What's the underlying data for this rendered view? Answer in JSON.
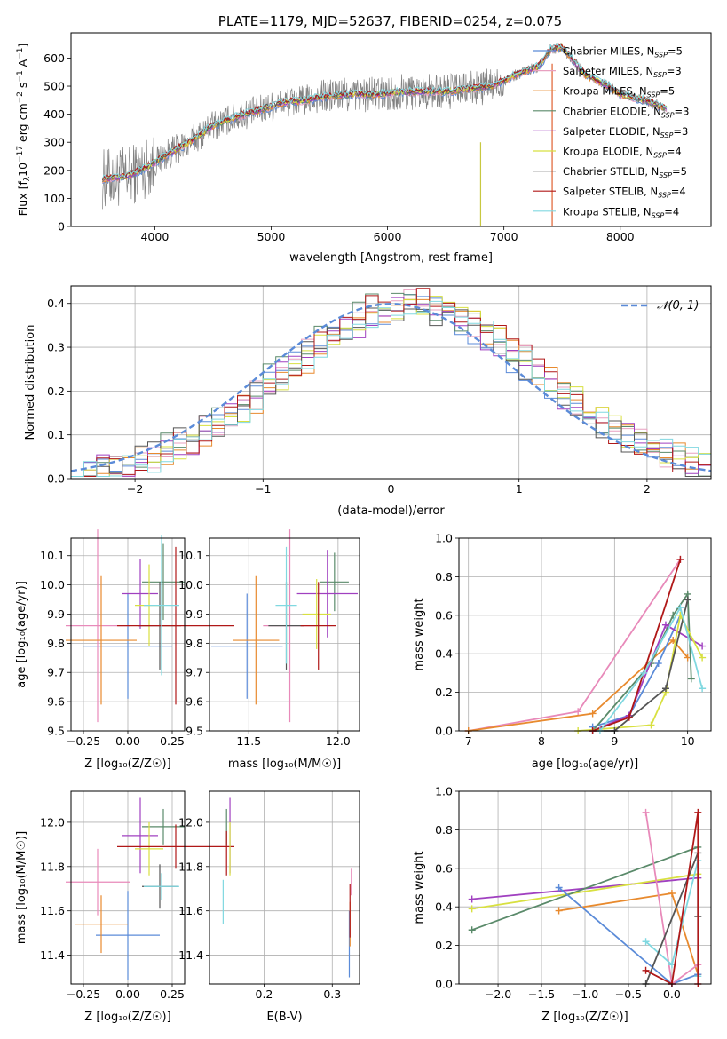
{
  "spectrum": {
    "title": "PLATE=1179, MJD=52637, FIBERID=0254, z=0.075",
    "xlabel": "wavelength [Angstrom, rest frame]",
    "ylabel": "Flux [f_λ 10^-17 erg cm^-2 s^-1 A^-1]",
    "xlim": [
      3280,
      8780
    ],
    "ylim": [
      0,
      690
    ],
    "xticks": [
      4000,
      5000,
      6000,
      7000,
      8000
    ],
    "yticks": [
      0,
      100,
      200,
      300,
      400,
      500,
      600
    ],
    "legend": [
      {
        "label": "Chabrier MILES, N_SSP=5",
        "color": "#5b8bd8"
      },
      {
        "label": "Salpeter MILES, N_SSP=3",
        "color": "#e8a0c0"
      },
      {
        "label": "Kroupa MILES, N_SSP=5",
        "color": "#e88a2e"
      },
      {
        "label": "Chabrier ELODIE, N_SSP=3",
        "color": "#5a8a6a"
      },
      {
        "label": "Salpeter ELODIE, N_SSP=3",
        "color": "#a040c0"
      },
      {
        "label": "Kroupa ELODIE, N_SSP=4",
        "color": "#d8e040"
      },
      {
        "label": "Chabrier STELIB, N_SSP=5",
        "color": "#555555"
      },
      {
        "label": "Salpeter STELIB, N_SSP=4",
        "color": "#b01818"
      },
      {
        "label": "Kroupa STELIB, N_SSP=4",
        "color": "#80d8e0"
      }
    ],
    "data_color": "#808080",
    "continuum": {
      "wavelength": [
        3550,
        3700,
        3800,
        3950,
        4100,
        4300,
        4500,
        4700,
        4900,
        5100,
        5300,
        5500,
        5700,
        5900,
        6100,
        6300,
        6500,
        6700,
        6900,
        7100,
        7300,
        7400,
        7500,
        7600,
        7700,
        7800,
        7900,
        8000,
        8200,
        8400
      ],
      "flux": [
        170,
        175,
        185,
        215,
        255,
        300,
        360,
        390,
        415,
        440,
        450,
        465,
        470,
        470,
        480,
        480,
        480,
        490,
        500,
        540,
        570,
        630,
        640,
        590,
        540,
        520,
        500,
        470,
        450,
        420
      ]
    }
  },
  "residuals": {
    "xlabel": "(data-model)/error",
    "ylabel": "Normed distribution",
    "xlim": [
      -2.5,
      2.5
    ],
    "ylim": [
      0,
      0.44
    ],
    "xticks": [
      -2,
      -1,
      0,
      1,
      2
    ],
    "yticks": [
      0.0,
      0.1,
      0.2,
      0.3,
      0.4
    ],
    "legend_label": "𝒩(0, 1)",
    "gaussian_color": "#5b8bd8"
  },
  "age_Z": {
    "xlabel": "Z [log₁₀(Z/Z☉)]",
    "ylabel": "age  [log₁₀(age/yr)]",
    "xlim": [
      -0.32,
      0.32
    ],
    "ylim": [
      9.5,
      10.16
    ],
    "xticks": [
      -0.25,
      0.0,
      0.25
    ],
    "xticklabels": [
      "−0.25",
      "0.00",
      "0.25"
    ],
    "yticks": [
      9.5,
      9.6,
      9.7,
      9.8,
      9.9,
      10.0,
      10.1
    ],
    "points": [
      {
        "x": 0.0,
        "y": 9.79,
        "xerr": 0.25,
        "yerr": 0.18,
        "color": "#5b8bd8"
      },
      {
        "x": -0.17,
        "y": 9.86,
        "xerr": 0.18,
        "yerr": 0.33,
        "color": "#e88aba"
      },
      {
        "x": -0.15,
        "y": 9.81,
        "xerr": 0.2,
        "yerr": 0.22,
        "color": "#e88a2e"
      },
      {
        "x": 0.2,
        "y": 10.01,
        "xerr": 0.12,
        "yerr": 0.13,
        "color": "#5a8a6a"
      },
      {
        "x": 0.07,
        "y": 9.97,
        "xerr": 0.1,
        "yerr": 0.12,
        "color": "#a040c0"
      },
      {
        "x": 0.12,
        "y": 9.93,
        "xerr": 0.08,
        "yerr": 0.14,
        "color": "#d8e040"
      },
      {
        "x": 0.18,
        "y": 9.86,
        "xerr": 0.12,
        "yerr": 0.15,
        "color": "#555555"
      },
      {
        "x": 0.27,
        "y": 9.86,
        "xerr": 0.33,
        "yerr": 0.27,
        "color": "#b01818"
      },
      {
        "x": 0.19,
        "y": 9.93,
        "xerr": 0.1,
        "yerr": 0.24,
        "color": "#80d8e0"
      }
    ]
  },
  "age_mass": {
    "xlabel": "mass [log₁₀(M/M☉)]",
    "xlim": [
      11.28,
      12.12
    ],
    "ylim": [
      9.5,
      10.16
    ],
    "xticks": [
      11.5,
      12.0
    ],
    "yticks": [
      9.5,
      9.6,
      9.7,
      9.8,
      9.9,
      10.0,
      10.1
    ],
    "points": [
      {
        "x": 11.49,
        "y": 9.79,
        "xerr": 0.2,
        "yerr": 0.18,
        "color": "#5b8bd8"
      },
      {
        "x": 11.73,
        "y": 9.86,
        "xerr": 0.15,
        "yerr": 0.33,
        "color": "#e88aba"
      },
      {
        "x": 11.54,
        "y": 9.81,
        "xerr": 0.13,
        "yerr": 0.22,
        "color": "#e88a2e"
      },
      {
        "x": 11.98,
        "y": 10.01,
        "xerr": 0.08,
        "yerr": 0.1,
        "color": "#5a8a6a"
      },
      {
        "x": 11.94,
        "y": 9.97,
        "xerr": 0.17,
        "yerr": 0.15,
        "color": "#a040c0"
      },
      {
        "x": 11.88,
        "y": 9.9,
        "xerr": 0.08,
        "yerr": 0.12,
        "color": "#d8e040"
      },
      {
        "x": 11.71,
        "y": 9.86,
        "xerr": 0.1,
        "yerr": 0.15,
        "color": "#555555"
      },
      {
        "x": 11.89,
        "y": 9.86,
        "xerr": 0.1,
        "yerr": 0.15,
        "color": "#b01818"
      },
      {
        "x": 11.71,
        "y": 9.93,
        "xerr": 0.06,
        "yerr": 0.2,
        "color": "#80d8e0"
      }
    ]
  },
  "weight_age": {
    "xlabel": "age  [log₁₀(age/yr)]",
    "ylabel": "mass weight",
    "xlim": [
      6.87,
      10.32
    ],
    "ylim": [
      0,
      1
    ],
    "xticks": [
      7,
      8,
      9,
      10
    ],
    "yticks": [
      0.0,
      0.2,
      0.4,
      0.6,
      0.8,
      1.0
    ],
    "series": [
      {
        "color": "#e88aba",
        "x": [
          7.0,
          8.5,
          9.9
        ],
        "y": [
          0.0,
          0.1,
          0.89
        ]
      },
      {
        "color": "#e88a2e",
        "x": [
          7.0,
          8.7,
          9.8,
          10.0
        ],
        "y": [
          0.0,
          0.09,
          0.47,
          0.38
        ]
      },
      {
        "color": "#5b8bd8",
        "x": [
          8.7,
          9.2,
          9.6,
          9.9
        ],
        "y": [
          0.02,
          0.08,
          0.35,
          0.6
        ]
      },
      {
        "color": "#5a8a6a",
        "x": [
          8.7,
          9.5,
          9.8,
          10.0,
          10.05
        ],
        "y": [
          0.0,
          0.35,
          0.6,
          0.71,
          0.27
        ]
      },
      {
        "color": "#a040c0",
        "x": [
          8.7,
          9.2,
          9.7,
          10.2
        ],
        "y": [
          0.0,
          0.08,
          0.55,
          0.44
        ]
      },
      {
        "color": "#d8e040",
        "x": [
          8.5,
          9.5,
          9.7,
          9.9,
          10.2
        ],
        "y": [
          0.0,
          0.03,
          0.2,
          0.6,
          0.38
        ]
      },
      {
        "color": "#555555",
        "x": [
          8.7,
          9.0,
          9.7,
          10.0
        ],
        "y": [
          0.0,
          0.0,
          0.22,
          0.68
        ]
      },
      {
        "color": "#b01818",
        "x": [
          8.7,
          9.2,
          9.9
        ],
        "y": [
          0.0,
          0.07,
          0.89
        ]
      },
      {
        "color": "#80d8e0",
        "x": [
          8.8,
          9.4,
          9.9,
          10.2
        ],
        "y": [
          0.0,
          0.3,
          0.64,
          0.22
        ]
      }
    ]
  },
  "mass_Z": {
    "xlabel": "Z [log₁₀(Z/Z☉)]",
    "ylabel": "mass [log₁₀(M/M☉)]",
    "xlim": [
      -0.32,
      0.32
    ],
    "ylim": [
      11.27,
      12.14
    ],
    "xticks": [
      -0.25,
      0.0,
      0.25
    ],
    "xticklabels": [
      "−0.25",
      "0.00",
      "0.25"
    ],
    "yticks": [
      11.4,
      11.6,
      11.8,
      12.0
    ],
    "points": [
      {
        "x": 0.0,
        "y": 11.49,
        "xerr": 0.18,
        "yerr": 0.2,
        "color": "#5b8bd8"
      },
      {
        "x": -0.17,
        "y": 11.73,
        "xerr": 0.18,
        "yerr": 0.15,
        "color": "#e88aba"
      },
      {
        "x": -0.15,
        "y": 11.54,
        "xerr": 0.15,
        "yerr": 0.13,
        "color": "#e88a2e"
      },
      {
        "x": 0.2,
        "y": 11.98,
        "xerr": 0.12,
        "yerr": 0.08,
        "color": "#5a8a6a"
      },
      {
        "x": 0.07,
        "y": 11.94,
        "xerr": 0.1,
        "yerr": 0.17,
        "color": "#a040c0"
      },
      {
        "x": 0.12,
        "y": 11.88,
        "xerr": 0.08,
        "yerr": 0.12,
        "color": "#d8e040"
      },
      {
        "x": 0.18,
        "y": 11.71,
        "xerr": 0.1,
        "yerr": 0.1,
        "color": "#555555"
      },
      {
        "x": 0.27,
        "y": 11.89,
        "xerr": 0.33,
        "yerr": 0.1,
        "color": "#b01818"
      },
      {
        "x": 0.19,
        "y": 11.71,
        "xerr": 0.1,
        "yerr": 0.06,
        "color": "#80d8e0"
      }
    ]
  },
  "mass_ebv": {
    "xlabel": "E(B-V)",
    "xlim": [
      0.12,
      0.34
    ],
    "ylim": [
      11.27,
      12.14
    ],
    "xticks": [
      0.2,
      0.3
    ],
    "xticklabels": [
      "0.2",
      "0.3"
    ],
    "yticks": [
      11.4,
      11.6,
      11.8,
      12.0
    ],
    "points": [
      {
        "x": 0.145,
        "y": 11.98,
        "yerr": 0.08,
        "color": "#5a8a6a"
      },
      {
        "x": 0.15,
        "y": 11.94,
        "yerr": 0.17,
        "color": "#a040c0"
      },
      {
        "x": 0.15,
        "y": 11.88,
        "yerr": 0.12,
        "color": "#d8e040"
      },
      {
        "x": 0.145,
        "y": 11.86,
        "yerr": 0.1,
        "color": "#b01818"
      },
      {
        "x": 0.14,
        "y": 11.64,
        "yerr": 0.1,
        "color": "#80d8e0"
      },
      {
        "x": 0.325,
        "y": 11.45,
        "yerr": 0.15,
        "color": "#5b8bd8"
      },
      {
        "x": 0.328,
        "y": 11.73,
        "yerr": 0.06,
        "color": "#e88aba"
      },
      {
        "x": 0.326,
        "y": 11.54,
        "yerr": 0.1,
        "color": "#e88a2e"
      },
      {
        "x": 0.326,
        "y": 11.6,
        "yerr": 0.12,
        "color": "#b01818"
      }
    ]
  },
  "weight_Z": {
    "xlabel": "Z [log₁₀(Z/Z☉)]",
    "ylabel": "mass weight",
    "xlim": [
      -2.45,
      0.45
    ],
    "ylim": [
      0,
      1
    ],
    "xticks": [
      -2.0,
      -1.5,
      -1.0,
      -0.5,
      0.0
    ],
    "xticklabels": [
      "−2.0",
      "−1.5",
      "−1.0",
      "−0.5",
      "0.0"
    ],
    "yticks": [
      0.0,
      0.2,
      0.4,
      0.6,
      0.8,
      1.0
    ],
    "series": [
      {
        "color": "#a040c0",
        "x": [
          -2.3,
          0.3
        ],
        "y": [
          0.44,
          0.55
        ]
      },
      {
        "color": "#d8e040",
        "x": [
          -2.3,
          0.3
        ],
        "y": [
          0.39,
          0.57
        ]
      },
      {
        "color": "#5a8a6a",
        "x": [
          -2.3,
          0.3
        ],
        "y": [
          0.28,
          0.71
        ]
      },
      {
        "color": "#e88a2e",
        "x": [
          -1.3,
          0.0,
          0.3
        ],
        "y": [
          0.38,
          0.47,
          0.05
        ]
      },
      {
        "color": "#5b8bd8",
        "x": [
          -1.3,
          0.0,
          0.3
        ],
        "y": [
          0.5,
          0.0,
          0.05
        ]
      },
      {
        "color": "#e88aba",
        "x": [
          -0.3,
          0.0,
          0.3
        ],
        "y": [
          0.89,
          0.0,
          0.1
        ]
      },
      {
        "color": "#80d8e0",
        "x": [
          -0.3,
          0.0,
          0.3,
          0.3
        ],
        "y": [
          0.22,
          0.1,
          0.64,
          0.04
        ]
      },
      {
        "color": "#555555",
        "x": [
          -0.3,
          0.3,
          0.3
        ],
        "y": [
          0.0,
          0.68,
          0.35
        ]
      },
      {
        "color": "#b01818",
        "x": [
          -0.3,
          0.0,
          0.3,
          0.3
        ],
        "y": [
          0.07,
          0.0,
          0.89,
          0.0
        ]
      }
    ]
  }
}
